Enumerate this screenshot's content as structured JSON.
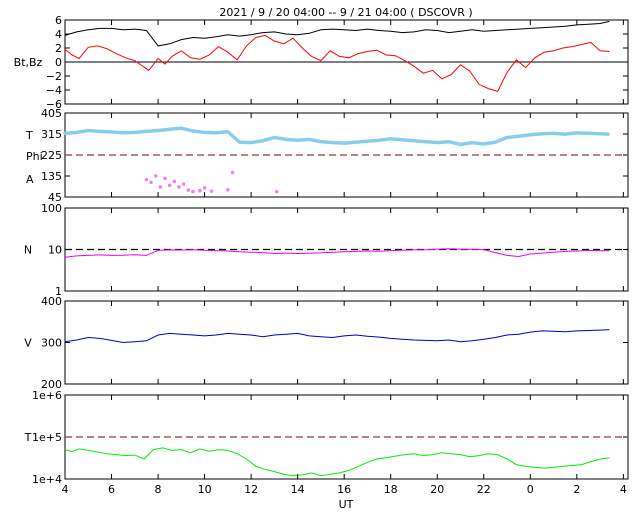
{
  "chart_data": {
    "type": "line",
    "title": "2021 /  9 / 20   04:00 --  9 / 21   04:00 ( DSCOVR )",
    "xlabel": "UT",
    "x_ticks": [
      "4",
      "6",
      "8",
      "10",
      "12",
      "14",
      "16",
      "18",
      "20",
      "22",
      "0",
      "2",
      "4"
    ],
    "panels": [
      {
        "id": "mag",
        "ylabel": "Bt,Bz",
        "ylim": [
          -6,
          6
        ],
        "y_ticks": [
          "6",
          "4",
          "2",
          "0",
          "−2",
          "−4",
          "−6"
        ],
        "reference_line": 0,
        "series": [
          {
            "color": "#000000",
            "x": [
              4.0,
              4.5,
              5.0,
              5.5,
              6.0,
              6.5,
              7.0,
              7.5,
              8.0,
              8.5,
              9.0,
              9.5,
              10.0,
              10.5,
              11.0,
              11.5,
              12.0,
              12.5,
              13.0,
              13.5,
              14.0,
              14.5,
              15.0,
              15.5,
              16.0,
              16.5,
              17.0,
              17.5,
              18.0,
              18.5,
              19.0,
              19.5,
              20.0,
              20.5,
              21.0,
              21.5,
              22.0,
              22.5,
              23.0,
              23.5,
              24.0,
              24.5,
              25.0,
              25.5,
              26.0,
              26.5,
              27.0,
              27.4
            ],
            "values": [
              3.8,
              4.3,
              4.6,
              4.8,
              4.8,
              4.6,
              4.7,
              4.5,
              2.3,
              2.6,
              3.2,
              3.5,
              3.4,
              3.6,
              3.9,
              3.7,
              3.9,
              4.2,
              4.3,
              4.0,
              3.9,
              4.1,
              4.6,
              4.7,
              4.6,
              4.5,
              4.7,
              4.5,
              4.4,
              4.2,
              4.3,
              4.6,
              4.5,
              4.2,
              4.4,
              4.6,
              4.4,
              4.5,
              4.6,
              4.7,
              4.8,
              4.9,
              5.0,
              5.1,
              5.3,
              5.4,
              5.5,
              5.8
            ]
          },
          {
            "color": "#ff0000",
            "x": [
              4.0,
              4.3,
              4.6,
              5.0,
              5.4,
              5.8,
              6.2,
              6.6,
              7.0,
              7.3,
              7.6,
              8.0,
              8.3,
              8.6,
              9.0,
              9.4,
              9.8,
              10.2,
              10.6,
              11.0,
              11.4,
              11.8,
              12.2,
              12.6,
              13.0,
              13.4,
              13.8,
              14.2,
              14.6,
              15.0,
              15.4,
              15.8,
              16.2,
              16.6,
              17.0,
              17.4,
              17.8,
              18.2,
              18.6,
              19.0,
              19.4,
              19.8,
              20.2,
              20.6,
              21.0,
              21.4,
              21.8,
              22.2,
              22.6,
              23.0,
              23.4,
              23.8,
              24.2,
              24.6,
              25.0,
              25.4,
              25.8,
              26.2,
              26.6,
              27.0,
              27.4
            ],
            "values": [
              1.8,
              1.0,
              0.5,
              2.1,
              2.3,
              1.9,
              1.2,
              0.6,
              0.2,
              -0.5,
              -1.2,
              0.5,
              -0.3,
              0.8,
              1.6,
              0.6,
              0.4,
              1.0,
              2.2,
              1.4,
              0.3,
              2.3,
              3.5,
              3.8,
              3.0,
              2.6,
              3.4,
              2.0,
              0.8,
              0.2,
              1.6,
              0.8,
              0.6,
              1.2,
              1.5,
              1.7,
              1.0,
              0.9,
              0.2,
              -0.6,
              -1.6,
              -1.2,
              -2.4,
              -1.8,
              -0.4,
              -1.3,
              -3.2,
              -3.8,
              -4.2,
              -1.5,
              0.3,
              -0.8,
              0.6,
              1.4,
              1.6,
              2.0,
              2.2,
              2.5,
              2.8,
              1.6,
              1.5
            ]
          }
        ]
      },
      {
        "id": "temp_phi",
        "ylabels": [
          "T",
          "Phi",
          "A"
        ],
        "ylim": [
          45,
          405
        ],
        "y_ticks": [
          "405",
          "315",
          "225",
          "135",
          "45"
        ],
        "reference_line": 225,
        "series": [
          {
            "color": "#87ceeb",
            "x": [
              4.0,
              4.5,
              5.0,
              5.5,
              6.0,
              6.5,
              7.0,
              7.5,
              8.0,
              8.5,
              9.0,
              9.5,
              10.0,
              10.5,
              11.0,
              11.5,
              12.0,
              12.5,
              13.0,
              13.5,
              14.0,
              14.5,
              15.0,
              15.5,
              16.0,
              16.5,
              17.0,
              17.5,
              18.0,
              18.5,
              19.0,
              19.5,
              20.0,
              20.5,
              21.0,
              21.5,
              22.0,
              22.5,
              23.0,
              23.5,
              24.0,
              24.5,
              25.0,
              25.5,
              26.0,
              26.5,
              27.0,
              27.4
            ],
            "values": [
              318,
              322,
              330,
              326,
              324,
              320,
              322,
              326,
              330,
              335,
              340,
              328,
              322,
              320,
              325,
              280,
              278,
              286,
              300,
              292,
              288,
              292,
              282,
              278,
              276,
              280,
              284,
              288,
              295,
              290,
              286,
              282,
              278,
              282,
              270,
              278,
              272,
              280,
              300,
              305,
              312,
              316,
              318,
              314,
              320,
              318,
              316,
              314
            ]
          },
          {
            "color": "#ee82ee",
            "x": [
              7.5,
              7.7,
              7.9,
              8.1,
              8.3,
              8.5,
              8.7,
              8.9,
              9.1,
              9.3,
              9.5,
              9.8,
              10.0,
              10.3,
              11.0,
              11.2,
              13.1
            ],
            "values": [
              120,
              108,
              135,
              88,
              125,
              95,
              112,
              88,
              100,
              75,
              68,
              72,
              84,
              70,
              76,
              150,
              68
            ]
          }
        ]
      },
      {
        "id": "density",
        "ylabel": "N",
        "scale": "log",
        "ylim": [
          1,
          100
        ],
        "y_ticks": [
          "100",
          "10",
          "1"
        ],
        "reference_line": 10,
        "series": [
          {
            "color": "#ee00ee",
            "x": [
              4.0,
              4.5,
              5.0,
              5.5,
              6.0,
              6.5,
              7.0,
              7.5,
              8.0,
              8.5,
              9.0,
              9.5,
              10.0,
              10.5,
              11.0,
              11.5,
              12.0,
              12.5,
              13.0,
              13.5,
              14.0,
              14.5,
              15.0,
              15.5,
              16.0,
              16.5,
              17.0,
              17.5,
              18.0,
              18.5,
              19.0,
              19.5,
              20.0,
              20.5,
              21.0,
              21.5,
              22.0,
              22.5,
              23.0,
              23.5,
              24.0,
              24.5,
              25.0,
              25.5,
              26.0,
              26.5,
              27.0,
              27.4
            ],
            "values": [
              6.5,
              7.0,
              7.2,
              7.4,
              7.2,
              7.3,
              7.5,
              7.2,
              9.5,
              9.8,
              9.7,
              9.9,
              9.6,
              9.4,
              9.2,
              8.8,
              8.6,
              8.4,
              8.0,
              8.2,
              8.0,
              8.1,
              8.3,
              8.6,
              8.8,
              9.0,
              9.2,
              9.1,
              9.4,
              9.6,
              9.8,
              9.9,
              10.2,
              10.4,
              10.2,
              10.1,
              9.9,
              8.4,
              7.2,
              6.8,
              7.8,
              8.2,
              8.6,
              9.0,
              9.2,
              9.5,
              9.4,
              9.3
            ]
          }
        ]
      },
      {
        "id": "speed",
        "ylabel": "V",
        "ylim": [
          200,
          400
        ],
        "y_ticks": [
          "400",
          "300",
          "200"
        ],
        "series": [
          {
            "color": "#0000cc",
            "x": [
              4.0,
              4.5,
              5.0,
              5.5,
              6.0,
              6.5,
              7.0,
              7.5,
              8.0,
              8.5,
              9.0,
              9.5,
              10.0,
              10.5,
              11.0,
              11.5,
              12.0,
              12.5,
              13.0,
              13.5,
              14.0,
              14.5,
              15.0,
              15.5,
              16.0,
              16.5,
              17.0,
              17.5,
              18.0,
              18.5,
              19.0,
              19.5,
              20.0,
              20.5,
              21.0,
              21.5,
              22.0,
              22.5,
              23.0,
              23.5,
              24.0,
              24.5,
              25.0,
              25.5,
              26.0,
              26.5,
              27.0,
              27.4
            ],
            "values": [
              302,
              306,
              312,
              310,
              305,
              300,
              302,
              304,
              318,
              322,
              320,
              318,
              316,
              318,
              322,
              320,
              318,
              314,
              318,
              320,
              322,
              316,
              314,
              312,
              316,
              318,
              315,
              313,
              310,
              308,
              306,
              305,
              304,
              306,
              302,
              304,
              308,
              312,
              318,
              320,
              325,
              328,
              327,
              326,
              328,
              329,
              330,
              331
            ]
          }
        ]
      },
      {
        "id": "temperature",
        "ylabel": "T",
        "scale": "log",
        "ylim": [
          10000,
          1000000
        ],
        "y_ticks": [
          "1e+6",
          "1e+5",
          "1e+4"
        ],
        "reference_line": 100000,
        "series": [
          {
            "color": "#00ee00",
            "x": [
              4.0,
              4.3,
              4.6,
              5.0,
              5.4,
              5.8,
              6.2,
              6.6,
              7.0,
              7.4,
              7.8,
              8.2,
              8.6,
              9.0,
              9.4,
              9.8,
              10.2,
              10.6,
              11.0,
              11.4,
              11.8,
              12.2,
              12.6,
              13.0,
              13.4,
              13.8,
              14.2,
              14.6,
              15.0,
              15.4,
              15.8,
              16.2,
              16.6,
              17.0,
              17.4,
              17.8,
              18.2,
              18.6,
              19.0,
              19.4,
              19.8,
              20.2,
              20.6,
              21.0,
              21.4,
              21.8,
              22.2,
              22.6,
              23.0,
              23.4,
              23.8,
              24.2,
              24.6,
              25.0,
              25.4,
              25.8,
              26.2,
              26.6,
              27.0,
              27.4
            ],
            "values": [
              50000,
              45000,
              52000,
              48000,
              44000,
              40000,
              38000,
              36000,
              37000,
              30000,
              50000,
              55000,
              48000,
              50000,
              42000,
              52000,
              46000,
              50000,
              48000,
              40000,
              30000,
              20000,
              17000,
              15000,
              13000,
              12000,
              12500,
              14000,
              12000,
              13000,
              14000,
              16000,
              20000,
              25000,
              30000,
              32000,
              35000,
              38000,
              40000,
              36000,
              38000,
              42000,
              40000,
              38000,
              34000,
              36000,
              40000,
              38000,
              30000,
              22000,
              20000,
              19000,
              18000,
              19000,
              20000,
              21000,
              22000,
              26000,
              30000,
              32000
            ]
          }
        ]
      }
    ]
  }
}
